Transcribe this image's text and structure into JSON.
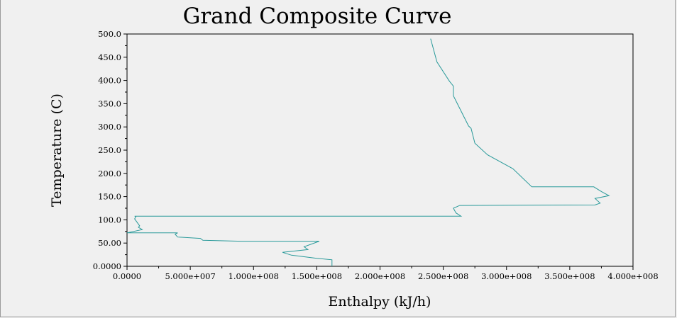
{
  "colors": {
    "background": "#f0f0f0",
    "curve": "#2a9a9a",
    "axis": "#000000"
  },
  "chart_data": {
    "type": "line",
    "title": "Grand Composite Curve",
    "xlabel": "Enthalpy (kJ/h)",
    "ylabel": "Temperature (C)",
    "xlim": [
      0,
      400000000
    ],
    "ylim": [
      0,
      500
    ],
    "grid": false,
    "legend": "none",
    "x_tick_values": [
      0,
      50000000,
      100000000,
      150000000,
      200000000,
      250000000,
      300000000,
      350000000,
      400000000
    ],
    "x_tick_labels": [
      "0.0000",
      "5.000e+007",
      "1.000e+008",
      "1.500e+008",
      "2.000e+008",
      "2.500e+008",
      "3.000e+008",
      "3.500e+008",
      "4.000e+008"
    ],
    "y_tick_values": [
      0,
      50,
      100,
      150,
      200,
      250,
      300,
      350,
      400,
      450,
      500
    ],
    "y_tick_labels": [
      "0.0000",
      "50.00",
      "100.0",
      "150.0",
      "200.0",
      "250.0",
      "300.0",
      "350.0",
      "400.0",
      "450.0",
      "500.0"
    ],
    "series": [
      {
        "points": [
          [
            162000000,
            0
          ],
          [
            162000000,
            14
          ],
          [
            150000000,
            17
          ],
          [
            130000000,
            24
          ],
          [
            123000000,
            30
          ],
          [
            143000000,
            36
          ],
          [
            140000000,
            42
          ],
          [
            152000000,
            54
          ],
          [
            90000000,
            54
          ],
          [
            60000000,
            56
          ],
          [
            58000000,
            60
          ],
          [
            40000000,
            63
          ],
          [
            38000000,
            69
          ],
          [
            40000000,
            72
          ],
          [
            0,
            72
          ],
          [
            12000000,
            79
          ],
          [
            9000000,
            84
          ],
          [
            10000000,
            87
          ],
          [
            6000000,
            102
          ],
          [
            7000000,
            107
          ],
          [
            6000000,
            108
          ],
          [
            264000000,
            108
          ],
          [
            260000000,
            115
          ],
          [
            258000000,
            125
          ],
          [
            263000000,
            131
          ],
          [
            370000000,
            132
          ],
          [
            374000000,
            136
          ],
          [
            370000000,
            146
          ],
          [
            381000000,
            152
          ],
          [
            375000000,
            161
          ],
          [
            369000000,
            171
          ],
          [
            320000000,
            171
          ],
          [
            305000000,
            210
          ],
          [
            285000000,
            240
          ],
          [
            275000000,
            265
          ],
          [
            272000000,
            297
          ],
          [
            270000000,
            302
          ],
          [
            258000000,
            367
          ],
          [
            258000000,
            388
          ],
          [
            255000000,
            398
          ],
          [
            245000000,
            440
          ],
          [
            240000000,
            490
          ]
        ]
      }
    ]
  }
}
